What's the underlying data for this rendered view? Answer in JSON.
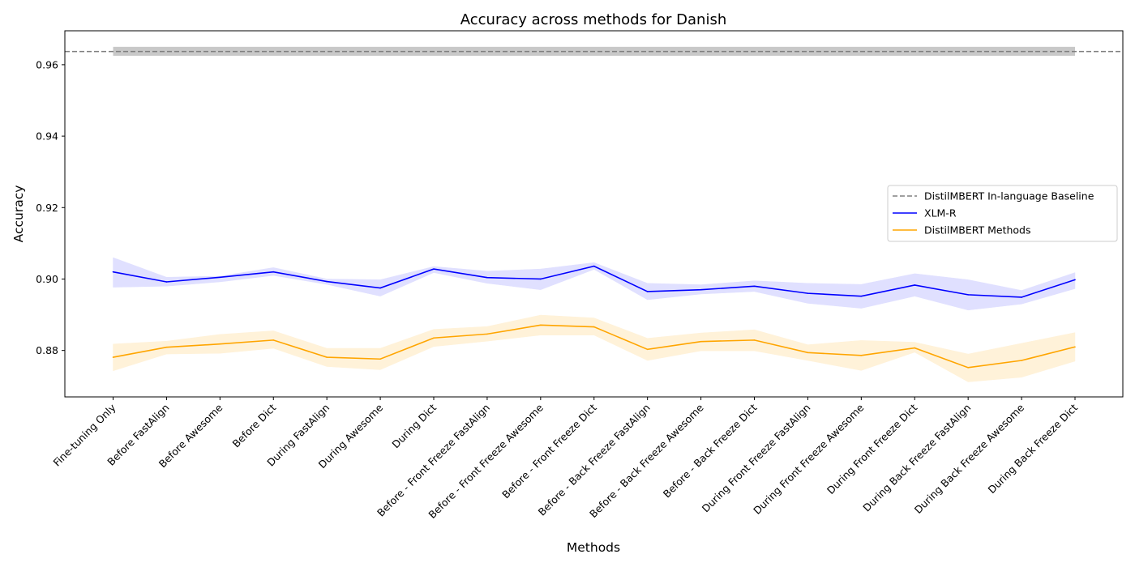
{
  "chart_data": {
    "type": "line",
    "title": "Accuracy across methods for Danish",
    "xlabel": "Methods",
    "ylabel": "Accuracy",
    "ylim": [
      0.867,
      0.9695
    ],
    "yticks": [
      "0.88",
      "0.90",
      "0.92",
      "0.94",
      "0.96"
    ],
    "ytick_values": [
      0.88,
      0.9,
      0.92,
      0.94,
      0.96
    ],
    "grid": false,
    "legend_position": "center-right",
    "categories": [
      "Fine-tuning Only",
      "Before FastAlign",
      "Before Awesome",
      "Before Dict",
      "During FastAlign",
      "During Awesome",
      "During Dict",
      "Before - Front Freeze FastAlign",
      "Before - Front Freeze Awesome",
      "Before - Front Freeze Dict",
      "Before - Back Freeze FastAlign",
      "Before - Back Freeze Awesome",
      "Before - Back Freeze Dict",
      "During Front Freeze FastAlign",
      "During Front Freeze Awesome",
      "During Front Freeze Dict",
      "During Back Freeze FastAlign",
      "During Back Freeze Awesome",
      "During Back Freeze Dict"
    ],
    "baseline": {
      "name": "DistilMBERT In-language Baseline",
      "value": 0.9637,
      "band": [
        0.9625,
        0.965
      ],
      "color": "#808080",
      "band_color": "#c8c8c8"
    },
    "series": [
      {
        "name": "XLM-R",
        "color": "#0000ff",
        "band_color": "#e0e0ff",
        "values": [
          0.902,
          0.8992,
          0.9005,
          0.902,
          0.8993,
          0.8975,
          0.9028,
          0.9004,
          0.9,
          0.9036,
          0.8965,
          0.897,
          0.898,
          0.896,
          0.8952,
          0.8983,
          0.8956,
          0.8949,
          0.8998
        ],
        "lower": [
          0.8977,
          0.898,
          0.8992,
          0.901,
          0.8985,
          0.8952,
          0.9018,
          0.8988,
          0.897,
          0.9027,
          0.8942,
          0.8958,
          0.8965,
          0.8932,
          0.8918,
          0.8952,
          0.8913,
          0.893,
          0.8973
        ],
        "upper": [
          0.906,
          0.9005,
          0.9008,
          0.9032,
          0.9,
          0.8998,
          0.9035,
          0.9022,
          0.9028,
          0.9046,
          0.8988,
          0.8984,
          0.8995,
          0.8988,
          0.8985,
          0.9015,
          0.8998,
          0.8968,
          0.9018
        ]
      },
      {
        "name": "DistilMBERT Methods",
        "color": "#ffa500",
        "band_color": "#fff2d9",
        "values": [
          0.8781,
          0.8809,
          0.8818,
          0.8829,
          0.8781,
          0.8776,
          0.8835,
          0.8846,
          0.8871,
          0.8866,
          0.8803,
          0.8825,
          0.8829,
          0.8794,
          0.8786,
          0.8807,
          0.8752,
          0.8772,
          0.881
        ],
        "lower": [
          0.8743,
          0.879,
          0.8792,
          0.8806,
          0.8755,
          0.8746,
          0.8811,
          0.8826,
          0.8843,
          0.8843,
          0.8772,
          0.8799,
          0.8799,
          0.8772,
          0.8744,
          0.8795,
          0.8712,
          0.8725,
          0.877
        ],
        "upper": [
          0.8818,
          0.8826,
          0.8845,
          0.8855,
          0.8806,
          0.8806,
          0.8859,
          0.8867,
          0.8899,
          0.8891,
          0.8834,
          0.8849,
          0.8858,
          0.8816,
          0.8828,
          0.8823,
          0.879,
          0.882,
          0.885
        ]
      }
    ]
  }
}
